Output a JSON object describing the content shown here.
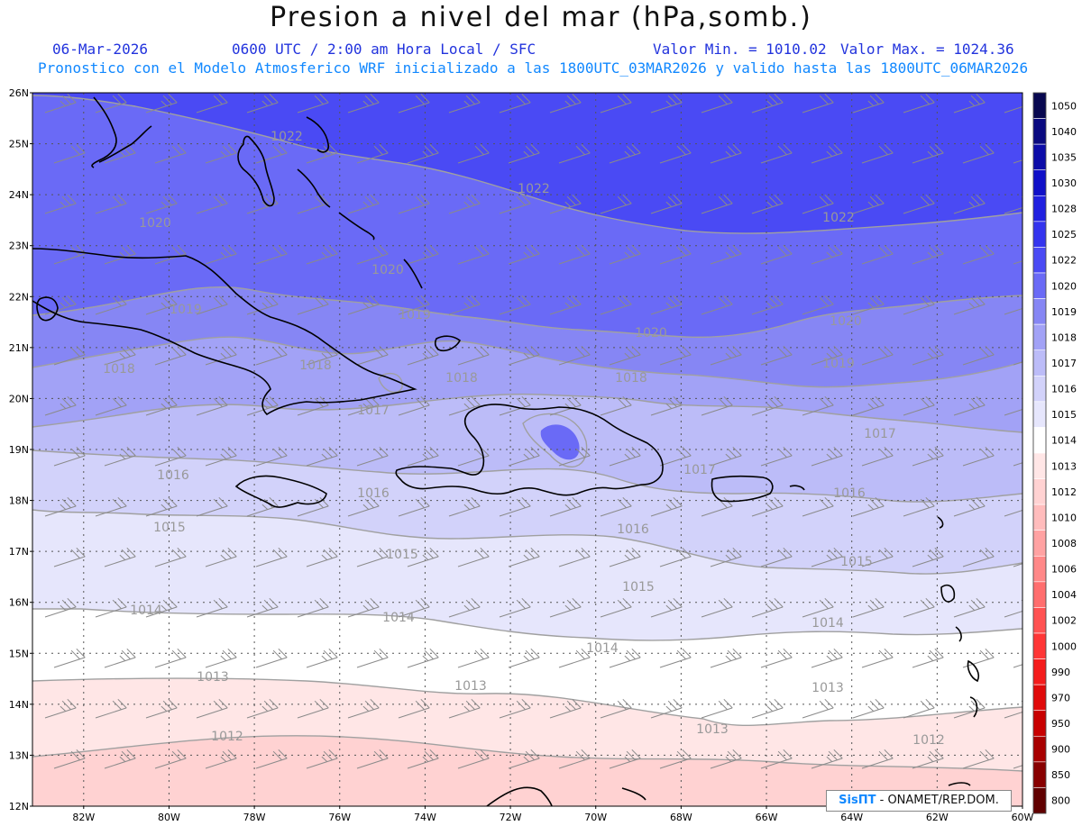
{
  "header": {
    "title": "Presion a nivel del mar (hPa,somb.)",
    "date": "06-Mar-2026",
    "time": "0600 UTC / 2:00 am Hora Local / SFC",
    "min_label": "Valor Min. = 1010.02",
    "max_label": "Valor Max. = 1024.36",
    "subtitle": "Pronostico con el Modelo Atmosferico WRF inicializado a las 1800UTC_03MAR2026 y valido hasta las  1800UTC_06MAR2026"
  },
  "axes": {
    "lat_labels": [
      "26N",
      "25N",
      "24N",
      "23N",
      "22N",
      "21N",
      "20N",
      "19N",
      "18N",
      "17N",
      "16N",
      "15N",
      "14N",
      "13N",
      "12N"
    ],
    "lon_labels": [
      "82W",
      "80W",
      "78W",
      "76W",
      "74W",
      "72W",
      "70W",
      "68W",
      "66W",
      "64W",
      "62W",
      "60W"
    ]
  },
  "colorbar": {
    "entries": [
      {
        "label": "1050",
        "color": "#080850"
      },
      {
        "label": "1040",
        "color": "#0a0a80"
      },
      {
        "label": "1035",
        "color": "#0c0ca8"
      },
      {
        "label": "1030",
        "color": "#1010c8"
      },
      {
        "label": "1028",
        "color": "#2020e0"
      },
      {
        "label": "1025",
        "color": "#3434ee"
      },
      {
        "label": "1022",
        "color": "#4a4af4"
      },
      {
        "label": "1020",
        "color": "#6a6af6"
      },
      {
        "label": "1019",
        "color": "#8686f4"
      },
      {
        "label": "1018",
        "color": "#a2a2f6"
      },
      {
        "label": "1017",
        "color": "#bcbcf8"
      },
      {
        "label": "1016",
        "color": "#d2d2fa"
      },
      {
        "label": "1015",
        "color": "#e6e6fc"
      },
      {
        "label": "1014",
        "color": "#ffffff"
      },
      {
        "label": "1013",
        "color": "#ffe6e6"
      },
      {
        "label": "1012",
        "color": "#ffd2d2"
      },
      {
        "label": "1010",
        "color": "#ffbcbc"
      },
      {
        "label": "1008",
        "color": "#ffa2a2"
      },
      {
        "label": "1006",
        "color": "#ff8888"
      },
      {
        "label": "1004",
        "color": "#ff6e6e"
      },
      {
        "label": "1002",
        "color": "#ff5252"
      },
      {
        "label": "1000",
        "color": "#ff3636"
      },
      {
        "label": "990",
        "color": "#f41c1c"
      },
      {
        "label": "970",
        "color": "#e00a0a"
      },
      {
        "label": "950",
        "color": "#c80000"
      },
      {
        "label": "900",
        "color": "#a80000"
      },
      {
        "label": "850",
        "color": "#880000"
      },
      {
        "label": "800",
        "color": "#600000"
      }
    ]
  },
  "contour_labels": [
    "1022",
    "1022",
    "1022",
    "1020",
    "1020",
    "1020",
    "1020",
    "1019",
    "1019",
    "1019",
    "1018",
    "1018",
    "1018",
    "1018",
    "1017",
    "1017",
    "1017",
    "1016",
    "1016",
    "1016",
    "1016",
    "1015",
    "1015",
    "1015",
    "1015",
    "1014",
    "1014",
    "1014",
    "1014",
    "1013",
    "1013",
    "1013",
    "1013",
    "1012",
    "1012"
  ],
  "colors": {
    "contour": "#a0a0a0",
    "coast": "#000000",
    "grid": "#444444",
    "barb": "#8a8a8a"
  },
  "credit": {
    "brand": "SisПT",
    "text": " - ONAMET/REP.DOM."
  }
}
